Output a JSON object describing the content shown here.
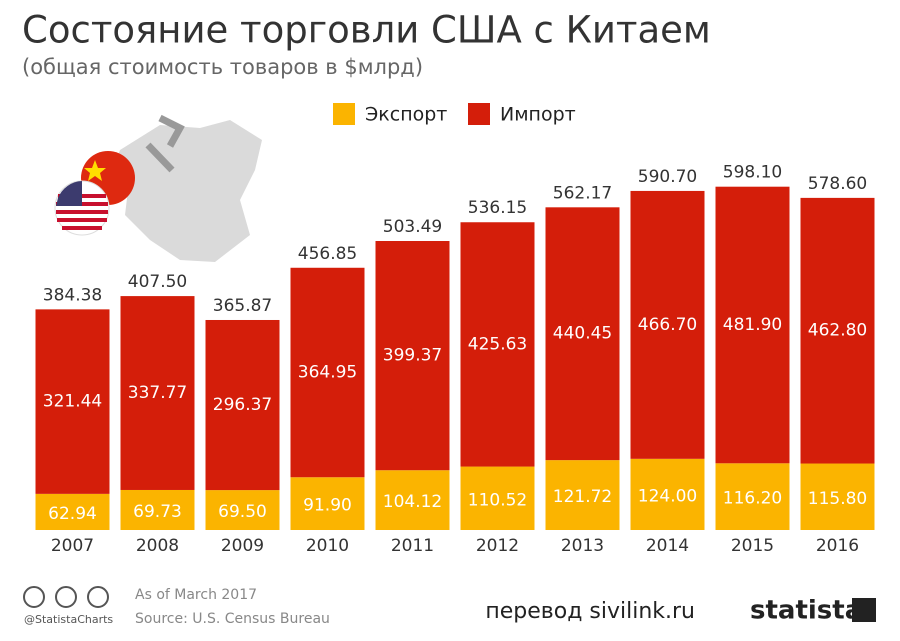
{
  "chart_data": {
    "type": "stacked-bar",
    "title": "Состояние торговли США с Китаем",
    "subtitle": "(общая стоимость товаров в $млрд)",
    "categories": [
      "2007",
      "2008",
      "2009",
      "2010",
      "2011",
      "2012",
      "2013",
      "2014",
      "2015",
      "2016"
    ],
    "series": [
      {
        "name": "Экспорт",
        "color": "#fbb400",
        "values": [
          62.94,
          69.73,
          69.5,
          91.9,
          104.12,
          110.52,
          121.72,
          124,
          116.2,
          115.8
        ],
        "value_labels": [
          "62.94",
          "69.73",
          "69.50",
          "91.90",
          "104.12",
          "110.52",
          "121.72",
          "124.00",
          "116.20",
          "115.80"
        ]
      },
      {
        "name": "Импорт",
        "color": "#d41e0a",
        "values": [
          321.44,
          337.77,
          296.37,
          364.95,
          399.37,
          425.63,
          440.45,
          466.7,
          481.9,
          462.8
        ],
        "value_labels": [
          "321.44",
          "337.77",
          "296.37",
          "364.95",
          "399.37",
          "425.63",
          "440.45",
          "466.70",
          "481.90",
          "462.80"
        ]
      }
    ],
    "totals": {
      "values": [
        384.38,
        407.5,
        365.87,
        456.85,
        503.49,
        536.15,
        562.17,
        590.7,
        598.1,
        578.6
      ],
      "value_labels": [
        "384.38",
        "407.50",
        "365.87",
        "456.85",
        "503.49",
        "536.15",
        "562.17",
        "590.70",
        "598.10",
        "578.60"
      ]
    },
    "note": "As of March 2017",
    "source": "Source: U.S. Census Bureau",
    "credit": "@StatistaCharts",
    "translation": "перевод sivilink.ru",
    "brand": "statista"
  }
}
